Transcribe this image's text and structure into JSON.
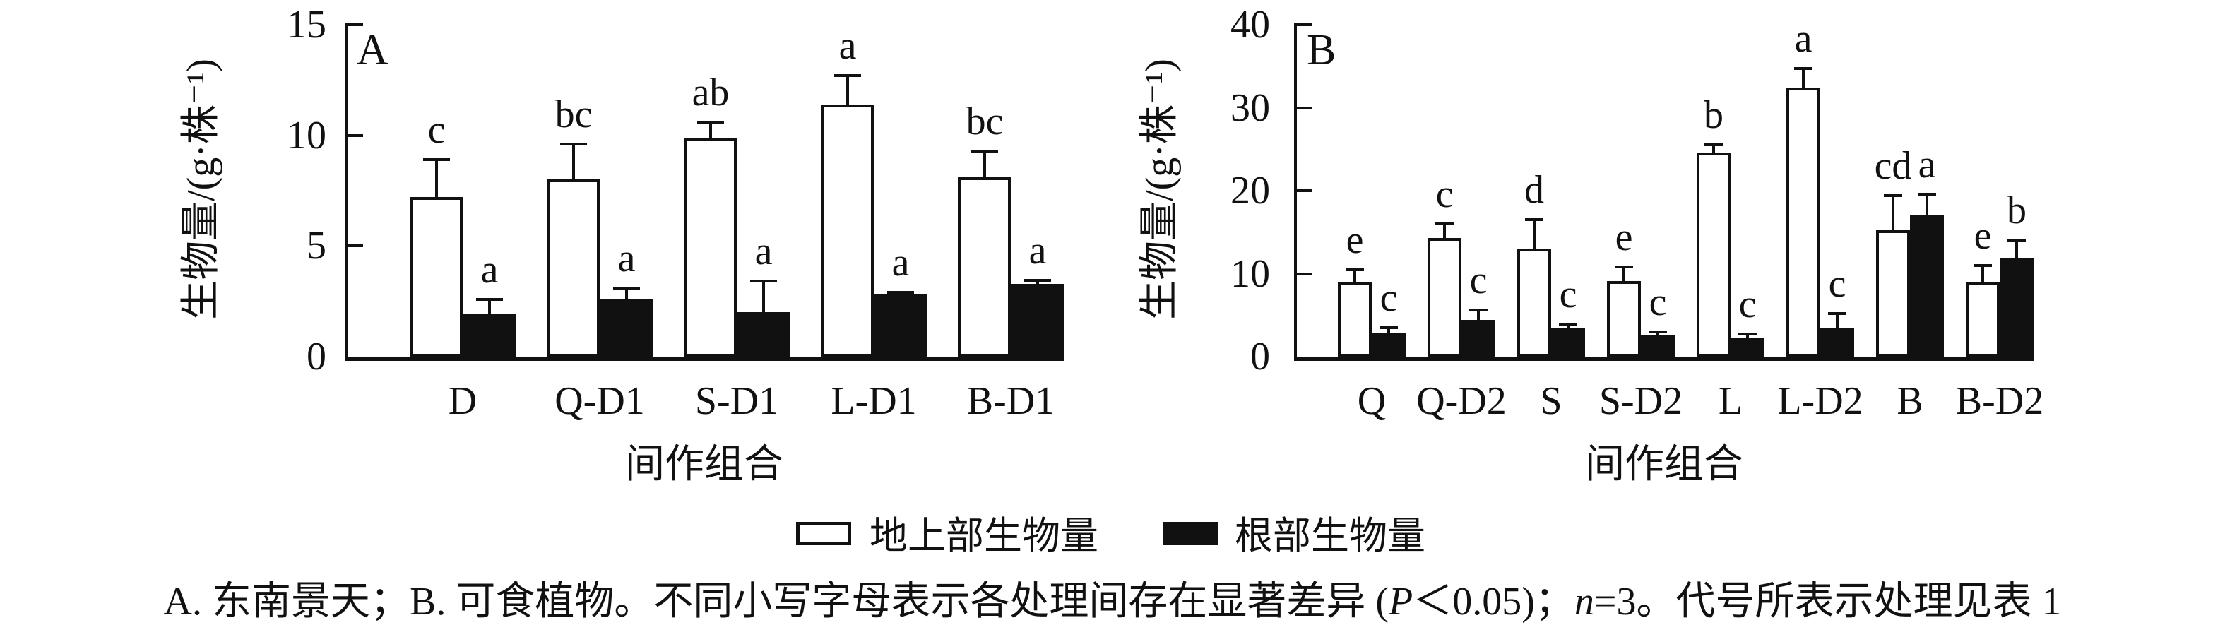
{
  "chart_data": [
    {
      "type": "bar",
      "panel_label": "A",
      "ylabel": "生物量/(g·株⁻¹)",
      "xlabel": "间作组合",
      "ylim": [
        0,
        15
      ],
      "yticks": [
        0,
        5,
        10,
        15
      ],
      "grid": false,
      "categories": [
        "D",
        "Q-D1",
        "S-D1",
        "L-D1",
        "B-D1"
      ],
      "series": [
        {
          "name": "地上部生物量",
          "fill": "#ffffff",
          "values": [
            7.2,
            8.0,
            9.9,
            11.4,
            8.1
          ],
          "errors": [
            1.7,
            1.6,
            0.7,
            1.3,
            1.2
          ],
          "sig_letters": [
            "c",
            "bc",
            "ab",
            "a",
            "bc"
          ]
        },
        {
          "name": "根部生物量",
          "fill": "#111111",
          "values": [
            1.9,
            2.6,
            2.0,
            2.8,
            3.3
          ],
          "errors": [
            0.7,
            0.5,
            1.4,
            0.1,
            0.15
          ],
          "sig_letters": [
            "a",
            "a",
            "a",
            "a",
            "a"
          ]
        }
      ]
    },
    {
      "type": "bar",
      "panel_label": "B",
      "ylabel": "生物量/(g·株⁻¹)",
      "xlabel": "间作组合",
      "ylim": [
        0,
        40
      ],
      "yticks": [
        0,
        10,
        20,
        30,
        40
      ],
      "grid": false,
      "categories": [
        "Q",
        "Q-D2",
        "S",
        "S-D2",
        "L",
        "L-D2",
        "B",
        "B-D2"
      ],
      "series": [
        {
          "name": "地上部生物量",
          "fill": "#ffffff",
          "values": [
            9.0,
            14.3,
            13.0,
            9.1,
            24.6,
            32.4,
            15.2,
            9.0
          ],
          "errors": [
            1.5,
            1.7,
            3.5,
            1.7,
            0.9,
            2.3,
            4.2,
            2.0
          ],
          "sig_letters": [
            "e",
            "c",
            "d",
            "e",
            "b",
            "a",
            "cd",
            "e"
          ]
        },
        {
          "name": "根部生物量",
          "fill": "#111111",
          "values": [
            2.8,
            4.4,
            3.4,
            2.6,
            2.2,
            3.4,
            17.1,
            11.9
          ],
          "errors": [
            0.7,
            1.2,
            0.5,
            0.4,
            0.5,
            1.8,
            2.5,
            2.1
          ],
          "sig_letters": [
            "c",
            "c",
            "c",
            "c",
            "c",
            "c",
            "a",
            "b"
          ]
        }
      ]
    }
  ],
  "legend": {
    "items": [
      {
        "label": "地上部生物量",
        "fill": "#ffffff"
      },
      {
        "label": "根部生物量",
        "fill": "#111111"
      }
    ]
  },
  "caption": {
    "segments": [
      {
        "text": "A. 东南景天；B. 可食植物。不同小写字母表示各处理间存在显著差异 (",
        "italic": false
      },
      {
        "text": "P",
        "italic": true
      },
      {
        "text": "＜0.05)；",
        "italic": false
      },
      {
        "text": "n",
        "italic": true
      },
      {
        "text": "=3。代号所表示处理见表 1",
        "italic": false
      }
    ]
  }
}
